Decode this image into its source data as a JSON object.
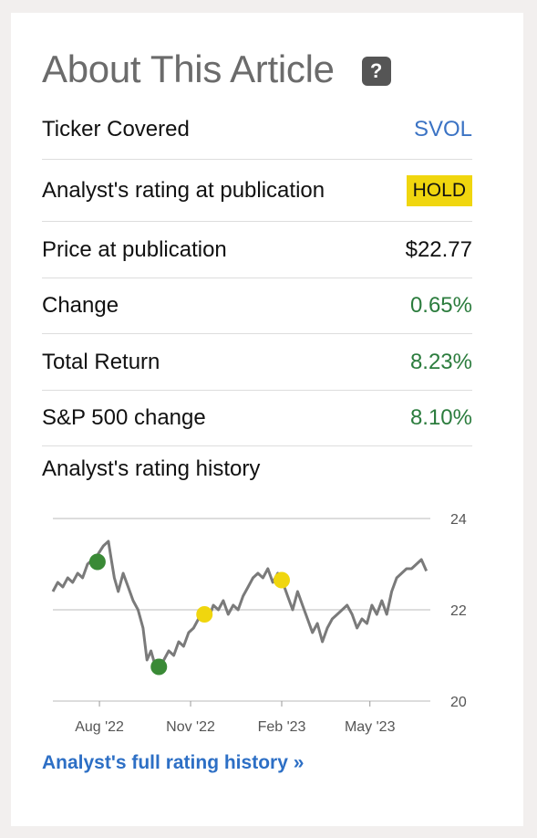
{
  "title": "About This Article",
  "help_icon_glyph": "?",
  "rows": [
    {
      "label": "Ticker Covered",
      "value": "SVOL",
      "style": "link"
    },
    {
      "label": "Analyst's rating at publication",
      "value": "HOLD",
      "style": "badge"
    },
    {
      "label": "Price at publication",
      "value": "$22.77",
      "style": "plain"
    },
    {
      "label": "Change",
      "value": "0.65%",
      "style": "pos"
    },
    {
      "label": "Total Return",
      "value": "8.23%",
      "style": "pos"
    },
    {
      "label": "S&P 500 change",
      "value": "8.10%",
      "style": "pos"
    }
  ],
  "history_label": "Analyst's rating history",
  "footer_link": "Analyst's full rating history »",
  "colors": {
    "link": "#3b73c4",
    "positive": "#2b7c3d",
    "hold_badge": "#f0d60e",
    "buy_marker": "#3a8a36",
    "hold_marker": "#f0d60e",
    "line": "#7a7a7a"
  },
  "chart_data": {
    "type": "line",
    "title": "",
    "xlabel": "",
    "ylabel": "",
    "x_range": [
      "2022-06-15",
      "2023-07-01"
    ],
    "ylim": [
      20,
      24
    ],
    "y_ticks": [
      {
        "value": 20,
        "label": "20"
      },
      {
        "value": 22,
        "label": "22"
      },
      {
        "value": 24,
        "label": "24"
      }
    ],
    "x_ticks": [
      {
        "date": "2022-08-01",
        "label": "Aug '22"
      },
      {
        "date": "2022-11-01",
        "label": "Nov '22"
      },
      {
        "date": "2023-02-01",
        "label": "Feb '23"
      },
      {
        "date": "2023-05-01",
        "label": "May '23"
      }
    ],
    "grid": "horizontal",
    "y_axis_position": "right",
    "series": [
      {
        "points": [
          [
            "2022-06-15",
            22.4
          ],
          [
            "2022-06-20",
            22.6
          ],
          [
            "2022-06-25",
            22.5
          ],
          [
            "2022-06-30",
            22.7
          ],
          [
            "2022-07-05",
            22.6
          ],
          [
            "2022-07-10",
            22.8
          ],
          [
            "2022-07-15",
            22.7
          ],
          [
            "2022-07-20",
            23.0
          ],
          [
            "2022-07-25",
            23.1
          ],
          [
            "2022-07-30",
            23.2
          ],
          [
            "2022-08-05",
            23.4
          ],
          [
            "2022-08-10",
            23.5
          ],
          [
            "2022-08-13",
            23.1
          ],
          [
            "2022-08-16",
            22.7
          ],
          [
            "2022-08-20",
            22.4
          ],
          [
            "2022-08-25",
            22.8
          ],
          [
            "2022-08-30",
            22.5
          ],
          [
            "2022-09-04",
            22.2
          ],
          [
            "2022-09-09",
            22.0
          ],
          [
            "2022-09-14",
            21.6
          ],
          [
            "2022-09-18",
            20.9
          ],
          [
            "2022-09-22",
            21.1
          ],
          [
            "2022-09-26",
            20.8
          ],
          [
            "2022-09-30",
            20.75
          ],
          [
            "2022-10-05",
            20.9
          ],
          [
            "2022-10-10",
            21.1
          ],
          [
            "2022-10-15",
            21.0
          ],
          [
            "2022-10-20",
            21.3
          ],
          [
            "2022-10-25",
            21.2
          ],
          [
            "2022-10-30",
            21.5
          ],
          [
            "2022-11-04",
            21.6
          ],
          [
            "2022-11-09",
            21.8
          ],
          [
            "2022-11-14",
            21.9
          ],
          [
            "2022-11-19",
            21.8
          ],
          [
            "2022-11-24",
            22.1
          ],
          [
            "2022-11-29",
            22.0
          ],
          [
            "2022-12-04",
            22.2
          ],
          [
            "2022-12-09",
            21.9
          ],
          [
            "2022-12-14",
            22.1
          ],
          [
            "2022-12-19",
            22.0
          ],
          [
            "2022-12-24",
            22.3
          ],
          [
            "2022-12-29",
            22.5
          ],
          [
            "2023-01-03",
            22.7
          ],
          [
            "2023-01-08",
            22.8
          ],
          [
            "2023-01-13",
            22.7
          ],
          [
            "2023-01-18",
            22.9
          ],
          [
            "2023-01-23",
            22.6
          ],
          [
            "2023-01-28",
            22.8
          ],
          [
            "2023-02-02",
            22.6
          ],
          [
            "2023-02-07",
            22.3
          ],
          [
            "2023-02-12",
            22.0
          ],
          [
            "2023-02-17",
            22.4
          ],
          [
            "2023-02-22",
            22.1
          ],
          [
            "2023-02-27",
            21.8
          ],
          [
            "2023-03-04",
            21.5
          ],
          [
            "2023-03-09",
            21.7
          ],
          [
            "2023-03-14",
            21.3
          ],
          [
            "2023-03-19",
            21.6
          ],
          [
            "2023-03-24",
            21.8
          ],
          [
            "2023-03-29",
            21.9
          ],
          [
            "2023-04-03",
            22.0
          ],
          [
            "2023-04-08",
            22.1
          ],
          [
            "2023-04-13",
            21.9
          ],
          [
            "2023-04-18",
            21.6
          ],
          [
            "2023-04-23",
            21.8
          ],
          [
            "2023-04-28",
            21.7
          ],
          [
            "2023-05-03",
            22.1
          ],
          [
            "2023-05-08",
            21.9
          ],
          [
            "2023-05-13",
            22.2
          ],
          [
            "2023-05-18",
            21.9
          ],
          [
            "2023-05-23",
            22.4
          ],
          [
            "2023-05-28",
            22.7
          ],
          [
            "2023-06-02",
            22.8
          ],
          [
            "2023-06-07",
            22.9
          ],
          [
            "2023-06-12",
            22.9
          ],
          [
            "2023-06-17",
            23.0
          ],
          [
            "2023-06-22",
            23.1
          ],
          [
            "2023-06-27",
            22.85
          ]
        ]
      }
    ],
    "rating_markers": [
      {
        "date": "2022-07-30",
        "value": 23.05,
        "rating": "buy"
      },
      {
        "date": "2022-09-30",
        "value": 20.75,
        "rating": "buy"
      },
      {
        "date": "2022-11-15",
        "value": 21.9,
        "rating": "hold"
      },
      {
        "date": "2023-02-01",
        "value": 22.65,
        "rating": "hold"
      }
    ]
  }
}
